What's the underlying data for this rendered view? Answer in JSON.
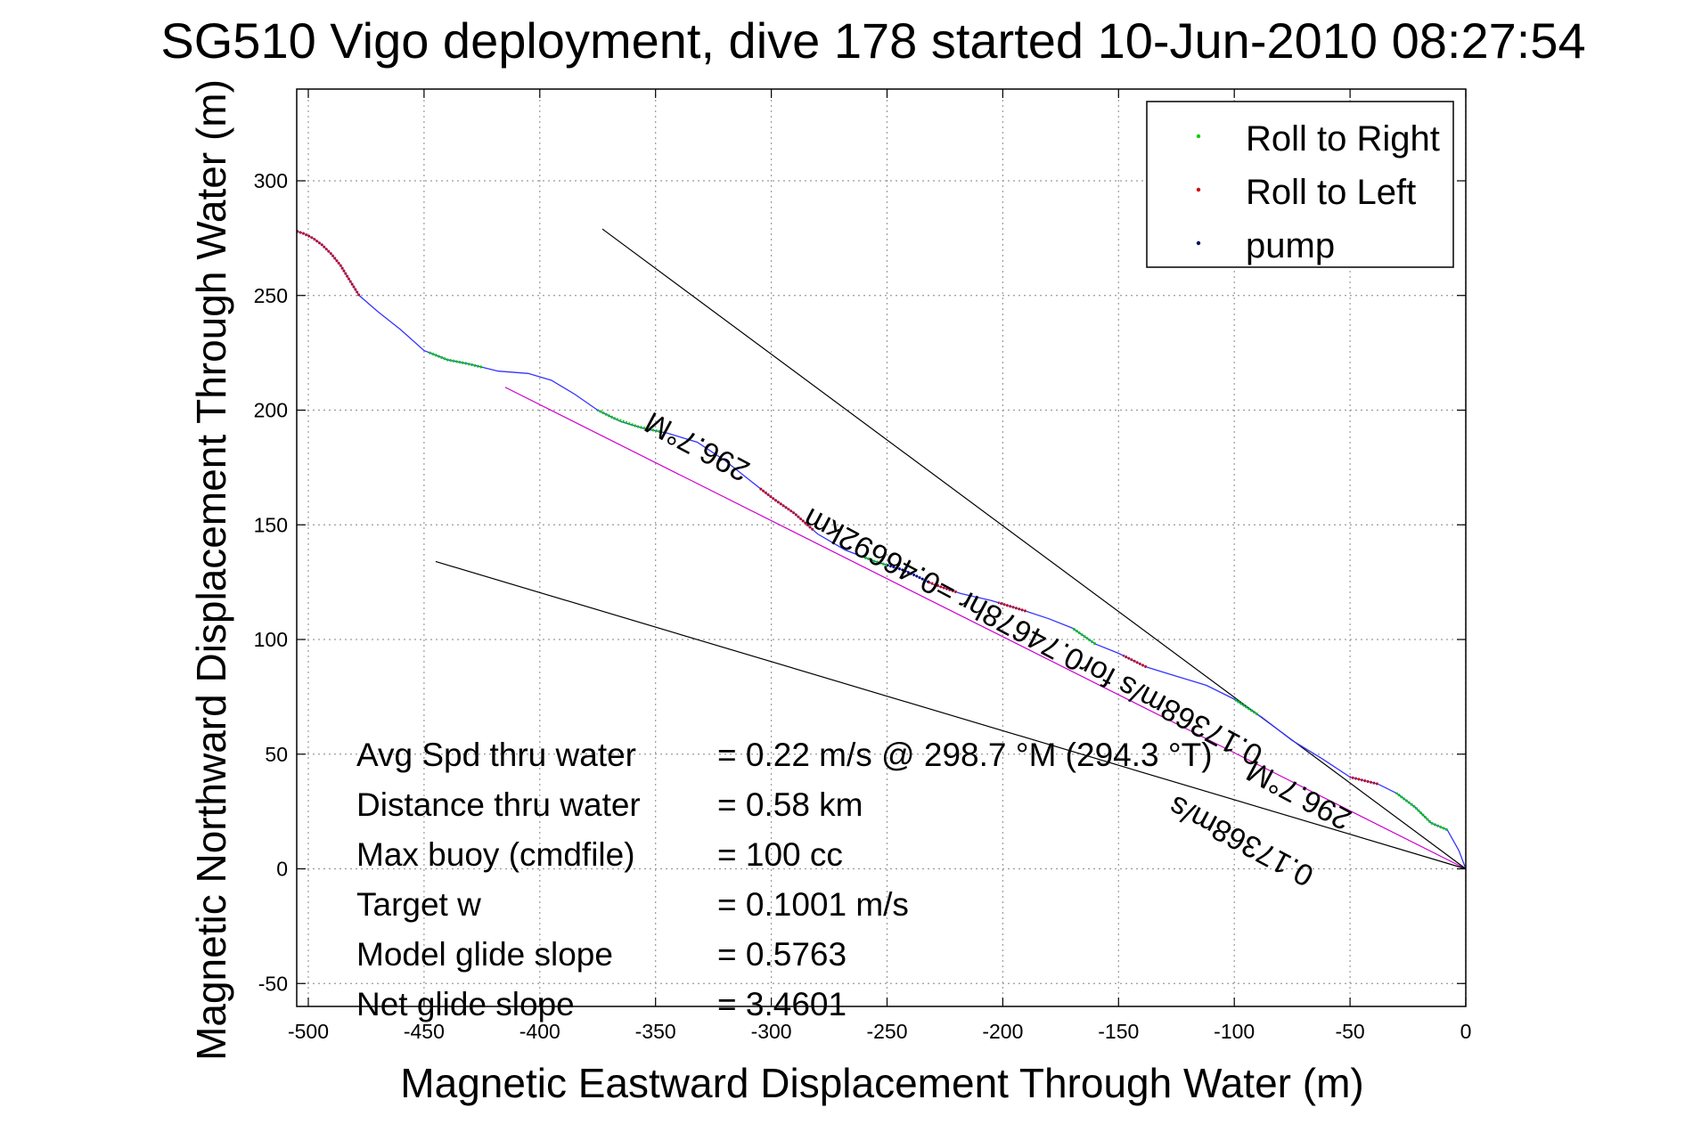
{
  "chart_data": {
    "type": "line",
    "title": "SG510 Vigo deployment, dive 178 started 10-Jun-2010 08:27:54",
    "xlabel": "Magnetic Eastward Displacement Through Water (m)",
    "ylabel": "Magnetic Northward Displacement Through Water (m)",
    "xlim": [
      -505,
      0
    ],
    "ylim": [
      -60,
      340
    ],
    "xticks": [
      -500,
      -450,
      -400,
      -350,
      -300,
      -250,
      -200,
      -150,
      -100,
      -50,
      0
    ],
    "yticks": [
      -50,
      0,
      50,
      100,
      150,
      200,
      250,
      300
    ],
    "grid": true,
    "legend_position": "top-right",
    "legend": [
      {
        "label": "Roll to Right",
        "color": "#00cc00"
      },
      {
        "label": "Roll to Left",
        "color": "#cc0000"
      },
      {
        "label": "pump",
        "color": "#000066"
      }
    ],
    "track": {
      "name": "track",
      "color": "#3333ff",
      "x": [
        0,
        -3,
        -8,
        -15,
        -22,
        -30,
        -38,
        -50,
        -62,
        -75,
        -88,
        -100,
        -112,
        -125,
        -138,
        -150,
        -160,
        -170,
        -180,
        -192,
        -205,
        -218,
        -230,
        -242,
        -255,
        -268,
        -280,
        -290,
        -300,
        -310,
        -320,
        -332,
        -345,
        -355,
        -365,
        -375,
        -385,
        -395,
        -405,
        -418,
        -430,
        -440,
        -450,
        -460,
        -470,
        -478,
        -483,
        -486,
        -490,
        -494,
        -498,
        -502,
        -505
      ],
      "y": [
        0,
        8,
        17,
        20,
        27,
        33,
        37,
        40,
        48,
        56,
        66,
        74,
        80,
        84,
        88,
        94,
        98,
        105,
        109,
        113,
        117,
        120,
        124,
        130,
        134,
        139,
        146,
        155,
        162,
        170,
        178,
        186,
        190,
        192,
        195,
        200,
        207,
        213,
        216,
        217,
        220,
        222,
        226,
        235,
        243,
        250,
        258,
        263,
        268,
        272,
        275,
        277,
        278
      ]
    },
    "roll_right_x": [
      [
        -8,
        -15,
        -22,
        -30
      ],
      [
        -90,
        -95,
        -100
      ],
      [
        -160,
        -165,
        -170
      ],
      [
        -348,
        -358,
        -368,
        -375
      ],
      [
        -425,
        -432,
        -440,
        -448
      ],
      [
        -250,
        -255,
        -260
      ]
    ],
    "roll_left_x": [
      [
        -38,
        -44,
        -50
      ],
      [
        -138,
        -143,
        -148
      ],
      [
        -190,
        -196,
        -202
      ],
      [
        -220,
        -226,
        -232
      ],
      [
        -282,
        -290,
        -298,
        -305
      ],
      [
        -478,
        -482,
        -486,
        -490,
        -494,
        -498,
        -502,
        -505
      ]
    ],
    "pump_x": [
      [
        -232,
        -238,
        -244,
        -250
      ]
    ],
    "lines": [
      {
        "name": "magenta-heading",
        "color": "#cc00cc",
        "x": [
          0,
          -415
        ],
        "y": [
          0,
          210
        ]
      },
      {
        "name": "black-upper",
        "color": "#000000",
        "x": [
          0,
          -373
        ],
        "y": [
          0,
          279
        ]
      },
      {
        "name": "black-lower",
        "color": "#000000",
        "x": [
          0,
          -445
        ],
        "y": [
          0,
          134
        ]
      }
    ],
    "annotations": [
      {
        "text": "296.7°M",
        "x": -330,
        "y": 188,
        "angle": 208
      },
      {
        "text": "0.17368m/s for0.74678hr =0.46692km",
        "x": -185,
        "y": 105,
        "angle": 208
      },
      {
        "text": "296.7°M",
        "x": -70,
        "y": 36,
        "angle": 208
      },
      {
        "text": "0.17368m/s",
        "x": -95,
        "y": 16,
        "angle": 208
      }
    ],
    "stats": [
      {
        "label": "Avg Spd thru water",
        "value": "=  0.22 m/s @ 298.7  °M (294.3 °T)"
      },
      {
        "label": "Distance thru water",
        "value": "=  0.58 km"
      },
      {
        "label": "Max buoy (cmdfile)",
        "value": "= 100 cc"
      },
      {
        "label": "Target w",
        "value": "= 0.1001 m/s"
      },
      {
        "label": "Model glide slope",
        "value": "= 0.5763"
      },
      {
        "label": "Net glide slope",
        "value": "= 3.4601"
      }
    ]
  }
}
